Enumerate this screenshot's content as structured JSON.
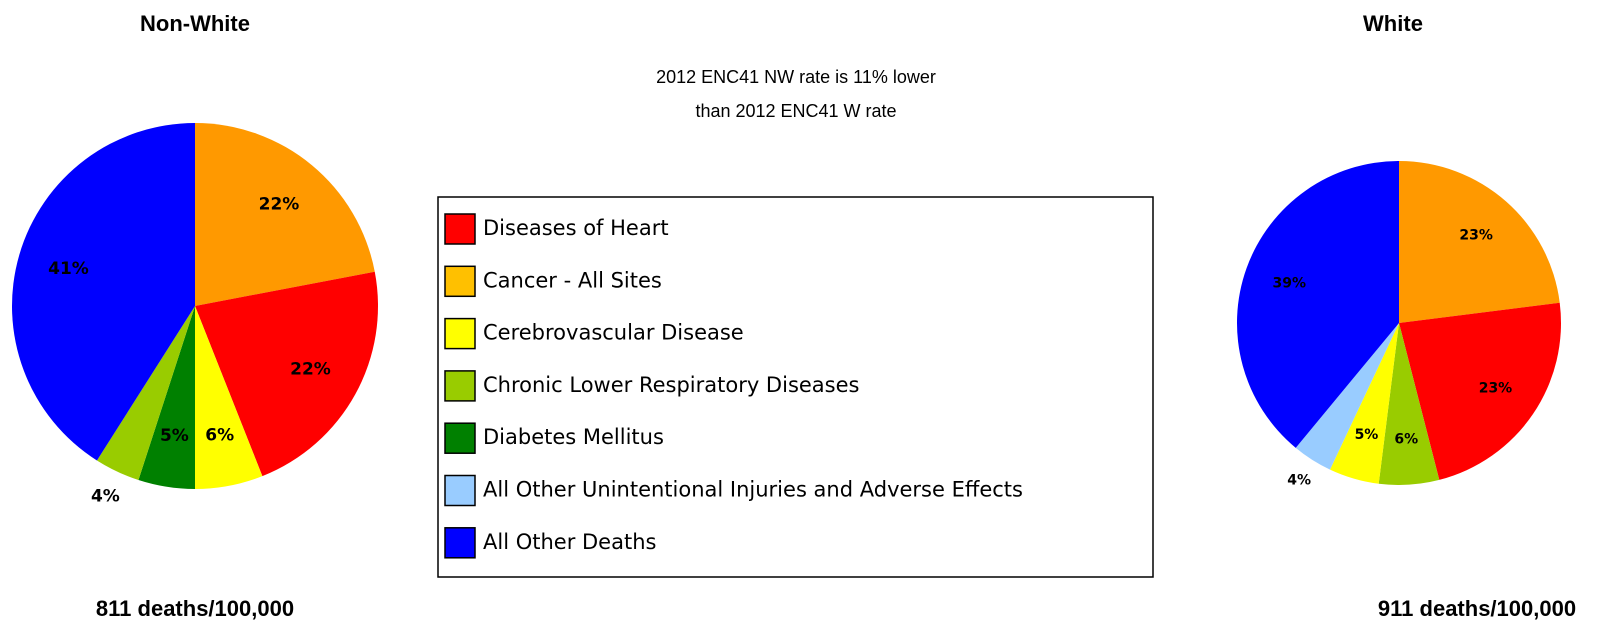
{
  "chart_data": [
    {
      "type": "pie",
      "title": "Non-White",
      "caption": "811 deaths/100,000",
      "values": [
        22,
        22,
        6,
        5,
        4,
        41
      ],
      "value_labels": [
        "22%",
        "22%",
        "6%",
        "5%",
        "4%",
        "41%"
      ],
      "colors": [
        "#ff9900",
        "#ff0000",
        "#ffff00",
        "#008000",
        "#99cc00",
        "#0000ff"
      ]
    },
    {
      "type": "pie",
      "title": "White",
      "caption": "911 deaths/100,000",
      "values": [
        23,
        23,
        6,
        5,
        4,
        39
      ],
      "value_labels": [
        "23%",
        "23%",
        "6%",
        "5%",
        "4%",
        "39%"
      ],
      "colors": [
        "#ff9900",
        "#ff0000",
        "#99cc00",
        "#ffff00",
        "#99ccff",
        "#0000ff"
      ]
    }
  ],
  "annotation": [
    "2012 ENC41 NW rate is 11% lower",
    "than 2012 ENC41 W rate"
  ],
  "legend": {
    "labels": [
      "Diseases of Heart",
      "Cancer - All Sites",
      "Cerebrovascular Disease",
      "Chronic Lower Respiratory Diseases",
      "Diabetes Mellitus",
      "All Other Unintentional Injuries and Adverse Effects",
      "All Other Deaths"
    ],
    "colors": [
      "#ff0000",
      "#ffc000",
      "#ffff00",
      "#99cc00",
      "#008000",
      "#99ccff",
      "#0000ff"
    ]
  }
}
